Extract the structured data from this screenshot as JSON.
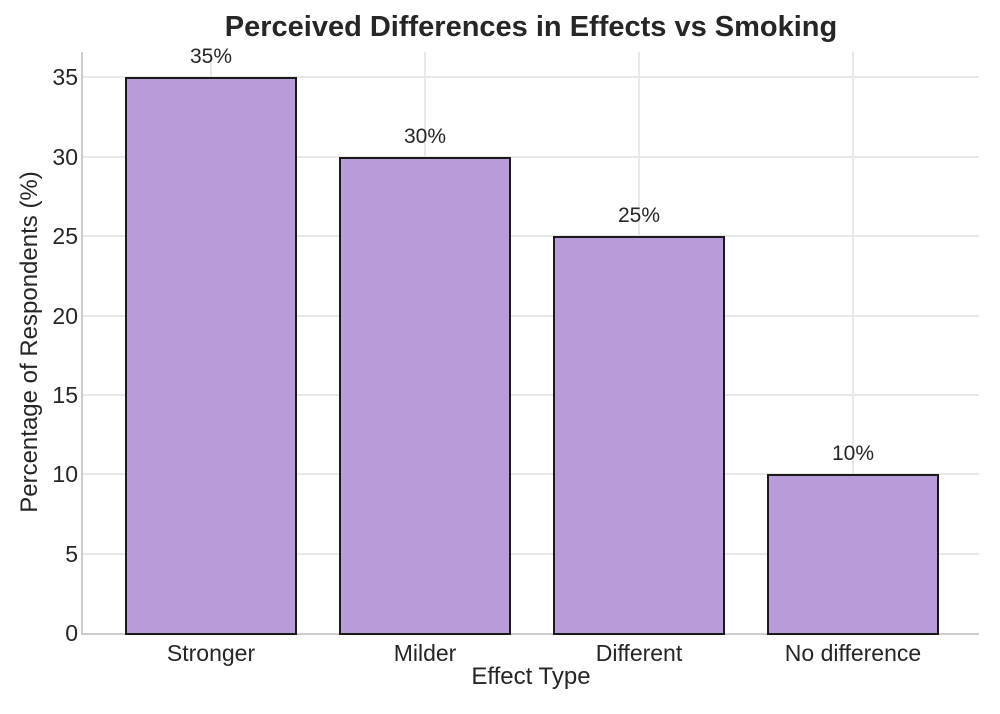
{
  "chart_data": {
    "type": "bar",
    "title": "Perceived Differences in Effects vs Smoking",
    "xlabel": "Effect Type",
    "ylabel": "Percentage of Respondents (%)",
    "categories": [
      "Stronger",
      "Milder",
      "Different",
      "No difference"
    ],
    "values": [
      35,
      30,
      25,
      10
    ],
    "value_labels": [
      "35%",
      "30%",
      "25%",
      "10%"
    ],
    "yticks": [
      0,
      5,
      10,
      15,
      20,
      25,
      30,
      35
    ],
    "ylim": [
      0,
      36.6
    ],
    "grid": true,
    "legend": false,
    "colors": {
      "bar_fill": "#b79cd9",
      "bar_edge": "#1a1a1a",
      "grid_line": "#e8e8e8",
      "spine": "#cccccc",
      "text": "#262626",
      "background": "#ffffff"
    }
  }
}
